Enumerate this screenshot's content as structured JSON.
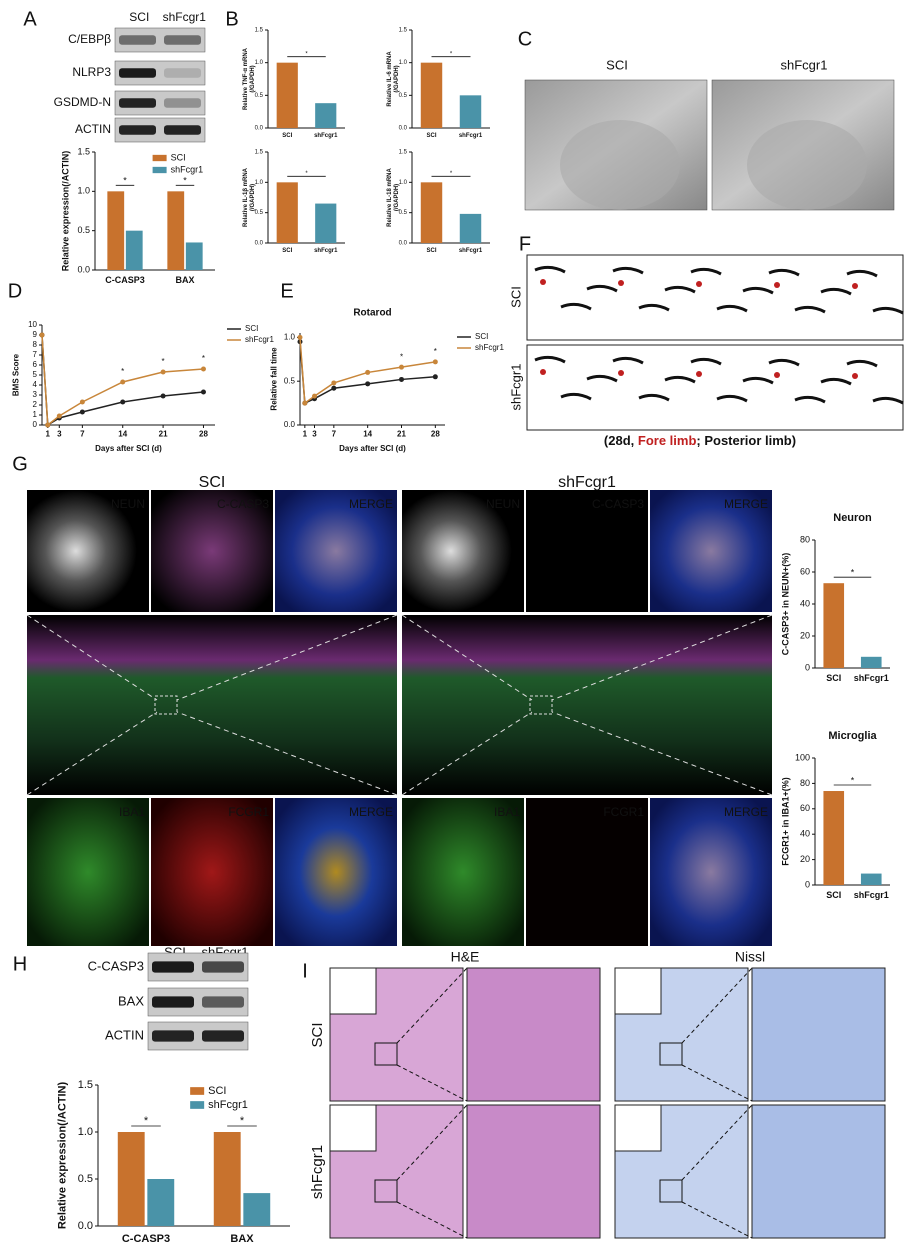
{
  "panel_letters": [
    "A",
    "B",
    "C",
    "D",
    "E",
    "F",
    "G",
    "H",
    "I"
  ],
  "blot_A": {
    "columns": [
      "SCI",
      "shFcgr1"
    ],
    "rows": [
      "C/EBPβ",
      "NLRP3",
      "GSDMD-N",
      "ACTIN"
    ]
  },
  "em_C": {
    "columns": [
      "SCI",
      "shFcgr1"
    ]
  },
  "gait_F": {
    "rows": [
      "SCI",
      "shFcgr1"
    ],
    "caption": [
      "(28d, ",
      "Fore limb",
      "; Posterior limb)"
    ]
  },
  "stain_G": {
    "groups": [
      "SCI",
      "shFcgr1"
    ],
    "top_tiles": [
      "NEUN",
      "C-CASP3",
      "MERGE"
    ],
    "bottom_tiles": [
      "IBA1",
      "FCGR1",
      "MERGE"
    ]
  },
  "blot_H": {
    "columns": [
      "SCI",
      "shFcgr1"
    ],
    "rows": [
      "C-CASP3",
      "BAX",
      "ACTIN"
    ]
  },
  "histology_I": {
    "columns": [
      "H&E",
      "Nissl"
    ],
    "rows": [
      "SCI",
      "shFcgr1"
    ]
  },
  "chart_data": [
    {
      "type": "bar",
      "ylabel": [
        "Relative expression(/ACTIN)"
      ],
      "categories": [
        "C-CASP3",
        "BAX"
      ],
      "series": [
        {
          "name": "SCI",
          "color": "#c8722d",
          "values": [
            1.0,
            1.0
          ]
        },
        {
          "name": "shFcgr1",
          "color": "#4a93a8",
          "values": [
            0.5,
            0.35
          ]
        }
      ],
      "ylim": [
        0,
        1.5
      ],
      "yticks": [
        {
          "value": 0,
          "label": "0.0"
        },
        {
          "value": 0.5,
          "label": "0.5"
        },
        {
          "value": 1,
          "label": "1.0"
        },
        {
          "value": 1.5,
          "label": "1.5"
        }
      ],
      "annotations": [
        "*",
        "*"
      ],
      "legend": "upper right"
    },
    {
      "type": "bar",
      "ylabel": [
        "Relative TNF-α mRNA",
        "(/GAPDH)"
      ],
      "categories": [
        "SCI",
        "shFcgr1"
      ],
      "values": [
        1.0,
        0.38
      ],
      "colors": [
        "#c8722d",
        "#4a93a8"
      ],
      "ylim": [
        0,
        1.5
      ],
      "yticks": [
        {
          "value": 0,
          "label": "0.0"
        },
        {
          "value": 0.5,
          "label": "0.5"
        },
        {
          "value": 1,
          "label": "1.0"
        },
        {
          "value": 1.5,
          "label": "1.5"
        }
      ],
      "annotations": [
        "*"
      ]
    },
    {
      "type": "bar",
      "ylabel": [
        "Relative IL-6 mRNA",
        "(/GAPDH)"
      ],
      "categories": [
        "SCI",
        "shFcgr1"
      ],
      "values": [
        1.0,
        0.5
      ],
      "colors": [
        "#c8722d",
        "#4a93a8"
      ],
      "ylim": [
        0,
        1.5
      ],
      "yticks": [
        {
          "value": 0,
          "label": "0.0"
        },
        {
          "value": 0.5,
          "label": "0.5"
        },
        {
          "value": 1,
          "label": "1.0"
        },
        {
          "value": 1.5,
          "label": "1.5"
        }
      ],
      "annotations": [
        "*"
      ]
    },
    {
      "type": "bar",
      "ylabel": [
        "Relative IL-1β mRNA",
        "(/GAPDH)"
      ],
      "categories": [
        "SCI",
        "shFcgr1"
      ],
      "values": [
        1.0,
        0.65
      ],
      "colors": [
        "#c8722d",
        "#4a93a8"
      ],
      "ylim": [
        0,
        1.5
      ],
      "yticks": [
        {
          "value": 0,
          "label": "0.0"
        },
        {
          "value": 0.5,
          "label": "0.5"
        },
        {
          "value": 1,
          "label": "1.0"
        },
        {
          "value": 1.5,
          "label": "1.5"
        }
      ],
      "annotations": [
        "*"
      ]
    },
    {
      "type": "bar",
      "ylabel": [
        "Relative IL-18 mRNA",
        "(/GAPDH)"
      ],
      "categories": [
        "SCI",
        "shFcgr1"
      ],
      "values": [
        1.0,
        0.48
      ],
      "colors": [
        "#c8722d",
        "#4a93a8"
      ],
      "ylim": [
        0,
        1.5
      ],
      "yticks": [
        {
          "value": 0,
          "label": "0.0"
        },
        {
          "value": 0.5,
          "label": "0.5"
        },
        {
          "value": 1,
          "label": "1.0"
        },
        {
          "value": 1.5,
          "label": "1.5"
        }
      ],
      "annotations": [
        "*"
      ]
    },
    {
      "type": "line",
      "ylabel": [
        "BMS Score"
      ],
      "xlabel": "Days after SCI (d)",
      "x": [
        0,
        1,
        3,
        7,
        14,
        21,
        28
      ],
      "series": [
        {
          "name": "SCI",
          "color": "#222222",
          "values": [
            9,
            0,
            0.7,
            1.3,
            2.3,
            2.9,
            3.3
          ]
        },
        {
          "name": "shFcgr1",
          "color": "#c8863a",
          "values": [
            9,
            0,
            0.9,
            2.3,
            4.3,
            5.3,
            5.6
          ]
        }
      ],
      "xlim": [
        0,
        30
      ],
      "xticks": [
        1,
        3,
        7,
        14,
        21,
        28
      ],
      "ylim": [
        0,
        10
      ],
      "yticks": [
        0,
        1,
        2,
        3,
        4,
        5,
        6,
        7,
        8,
        9,
        10
      ],
      "annotations": [
        {
          "x": 14,
          "text": "*"
        },
        {
          "x": 21,
          "text": "*"
        },
        {
          "x": 28,
          "text": "*"
        }
      ],
      "legend": "right"
    },
    {
      "type": "line",
      "title": "Rotarod",
      "ylabel": [
        "Relative fall time"
      ],
      "xlabel": "Days after SCI (d)",
      "x": [
        0,
        1,
        3,
        7,
        14,
        21,
        28
      ],
      "series": [
        {
          "name": "SCI",
          "color": "#222222",
          "values": [
            0.95,
            0.25,
            0.3,
            0.42,
            0.47,
            0.52,
            0.55
          ]
        },
        {
          "name": "shFcgr1",
          "color": "#c8863a",
          "values": [
            1.0,
            0.25,
            0.33,
            0.48,
            0.6,
            0.66,
            0.72
          ]
        }
      ],
      "xlim": [
        0,
        30
      ],
      "xticks": [
        1,
        3,
        7,
        14,
        21,
        28
      ],
      "ylim": [
        0,
        1.05
      ],
      "yticks": [
        {
          "value": 0,
          "label": "0.0"
        },
        0.5,
        {
          "value": 1,
          "label": "1.0"
        }
      ],
      "annotations": [
        {
          "x": 21,
          "text": "*"
        },
        {
          "x": 28,
          "text": "*"
        }
      ],
      "legend": "right"
    },
    {
      "type": "bar",
      "title": "Neuron",
      "ylabel": [
        "C-CASP3+ in NEUN+(%)"
      ],
      "categories": [
        "SCI",
        "shFcgr1"
      ],
      "values": [
        53,
        7
      ],
      "colors": [
        "#c8722d",
        "#4a93a8"
      ],
      "ylim": [
        0,
        80
      ],
      "yticks": [
        0,
        20,
        40,
        60,
        80
      ],
      "annotations": [
        "*"
      ]
    },
    {
      "type": "bar",
      "title": "Microglia",
      "ylabel": [
        "FCGR1+ in IBA1+(%)"
      ],
      "categories": [
        "SCI",
        "shFcgr1"
      ],
      "values": [
        74,
        9
      ],
      "colors": [
        "#c8722d",
        "#4a93a8"
      ],
      "ylim": [
        0,
        100
      ],
      "yticks": [
        0,
        20,
        40,
        60,
        80,
        100
      ],
      "annotations": [
        "*"
      ]
    },
    {
      "type": "bar",
      "ylabel": [
        "Relative expression(/ACTIN)"
      ],
      "categories": [
        "C-CASP3",
        "BAX"
      ],
      "series": [
        {
          "name": "SCI",
          "color": "#c8722d",
          "values": [
            1.0,
            1.0
          ]
        },
        {
          "name": "shFcgr1",
          "color": "#4a93a8",
          "values": [
            0.5,
            0.35
          ]
        }
      ],
      "ylim": [
        0,
        1.5
      ],
      "yticks": [
        {
          "value": 0,
          "label": "0.0"
        },
        {
          "value": 0.5,
          "label": "0.5"
        },
        {
          "value": 1,
          "label": "1.0"
        },
        {
          "value": 1.5,
          "label": "1.5"
        }
      ],
      "annotations": [
        "*",
        "*"
      ],
      "legend": "upper right"
    }
  ]
}
